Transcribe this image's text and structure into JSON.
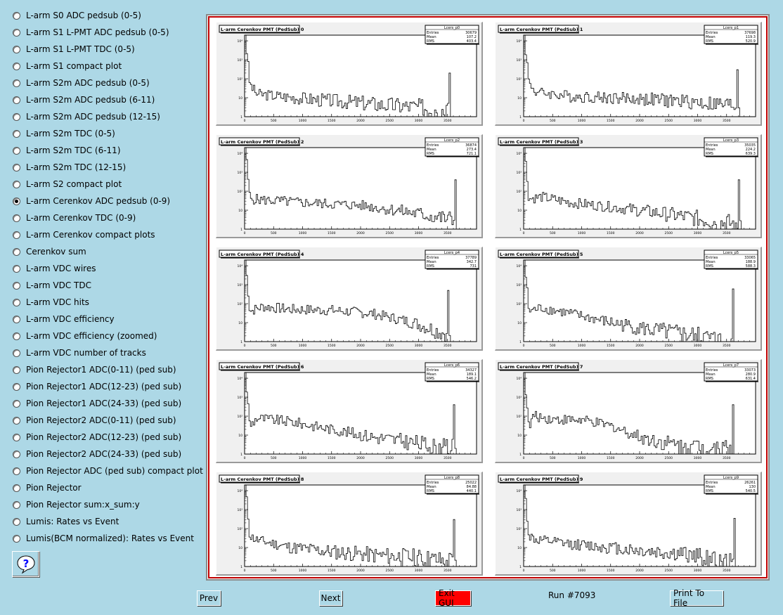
{
  "sidebar": {
    "items": [
      {
        "label": "L-arm S0 ADC pedsub (0-5)",
        "checked": false
      },
      {
        "label": "L-arm S1 L-PMT ADC pedsub (0-5)",
        "checked": false
      },
      {
        "label": "L-arm S1 L-PMT TDC (0-5)",
        "checked": false
      },
      {
        "label": "L-arm S1 compact plot",
        "checked": false
      },
      {
        "label": "L-arm S2m ADC pedsub (0-5)",
        "checked": false
      },
      {
        "label": "L-arm S2m ADC pedsub (6-11)",
        "checked": false
      },
      {
        "label": "L-arm S2m ADC pedsub (12-15)",
        "checked": false
      },
      {
        "label": "L-arm S2m TDC (0-5)",
        "checked": false
      },
      {
        "label": "L-arm S2m TDC (6-11)",
        "checked": false
      },
      {
        "label": "L-arm S2m TDC (12-15)",
        "checked": false
      },
      {
        "label": "L-arm S2 compact plot",
        "checked": false
      },
      {
        "label": "L-arm Cerenkov ADC pedsub (0-9)",
        "checked": true
      },
      {
        "label": "L-arm Cerenkov TDC (0-9)",
        "checked": false
      },
      {
        "label": "L-arm Cerenkov compact plots",
        "checked": false
      },
      {
        "label": "Cerenkov sum",
        "checked": false
      },
      {
        "label": "L-arm VDC wires",
        "checked": false
      },
      {
        "label": "L-arm VDC TDC",
        "checked": false
      },
      {
        "label": "L-arm VDC hits",
        "checked": false
      },
      {
        "label": "L-arm VDC efficiency",
        "checked": false
      },
      {
        "label": "L-arm VDC efficiency (zoomed)",
        "checked": false
      },
      {
        "label": "L-arm VDC number of tracks",
        "checked": false
      },
      {
        "label": "Pion Rejector1 ADC(0-11) (ped sub)",
        "checked": false
      },
      {
        "label": "Pion Rejector1 ADC(12-23) (ped sub)",
        "checked": false
      },
      {
        "label": "Pion Rejector1 ADC(24-33) (ped sub)",
        "checked": false
      },
      {
        "label": "Pion Rejector2 ADC(0-11) (ped sub)",
        "checked": false
      },
      {
        "label": "Pion Rejector2 ADC(12-23) (ped sub)",
        "checked": false
      },
      {
        "label": "Pion Rejector2 ADC(24-33) (ped sub)",
        "checked": false
      },
      {
        "label": "Pion Rejector ADC (ped sub) compact plot",
        "checked": false
      },
      {
        "label": "Pion Rejector",
        "checked": false
      },
      {
        "label": "Pion Rejector sum:x_sum:y",
        "checked": false
      },
      {
        "label": "Lumis: Rates vs Event",
        "checked": false
      },
      {
        "label": "Lumis(BCM normalized): Rates vs Event",
        "checked": false
      }
    ],
    "help_icon": "question-mark-icon"
  },
  "footer": {
    "prev_label": "Prev",
    "next_label": "Next",
    "exit_label": "Exit GUI",
    "run_label": "Run #7093",
    "print_label": "Print To File",
    "exit_color": "#ff0000"
  },
  "chart_data": [
    {
      "type": "histogram",
      "title": "L-arm Cerenkov PMT (PedSub) 0",
      "stats": {
        "name": "Lcers_p0",
        "Entries": "30679",
        "Mean": "107.2",
        "RMS": "403.4"
      },
      "log_y": true,
      "x_ticks": [
        "0",
        "500",
        "1000",
        "1500",
        "2000",
        "2500",
        "3000",
        "3500"
      ],
      "y_ticks": [
        "1",
        "10",
        "10²",
        "10³",
        "10⁴"
      ],
      "xlim": [
        0,
        4000
      ],
      "ylim": [
        1,
        20000
      ],
      "profile": [
        [
          0,
          20000
        ],
        [
          80,
          50
        ],
        [
          200,
          16
        ],
        [
          600,
          12
        ],
        [
          1200,
          8
        ],
        [
          1800,
          6
        ],
        [
          2500,
          4
        ],
        [
          3200,
          3
        ],
        [
          3500,
          2
        ]
      ],
      "spike": {
        "x": 3520,
        "y": 200
      }
    },
    {
      "type": "histogram",
      "title": "L-arm Cerenkov PMT (PedSub) 1",
      "stats": {
        "name": "Lcers_p1",
        "Entries": "37698",
        "Mean": "119.3",
        "RMS": "520.9"
      },
      "log_y": true,
      "x_ticks": [
        "0",
        "500",
        "1000",
        "1500",
        "2000",
        "2500",
        "3000",
        "3500"
      ],
      "y_ticks": [
        "1",
        "10",
        "10²",
        "10³",
        "10⁴"
      ],
      "xlim": [
        0,
        4000
      ],
      "ylim": [
        1,
        20000
      ],
      "profile": [
        [
          0,
          20000
        ],
        [
          80,
          60
        ],
        [
          200,
          20
        ],
        [
          800,
          12
        ],
        [
          1500,
          10
        ],
        [
          2200,
          8
        ],
        [
          2900,
          6
        ],
        [
          3500,
          4
        ]
      ],
      "spike": {
        "x": 3680,
        "y": 300
      }
    },
    {
      "type": "histogram",
      "title": "L-arm Cerenkov PMT (PedSub) 2",
      "stats": {
        "name": "Lcers_p2",
        "Entries": "36874",
        "Mean": "273.4",
        "RMS": "721.1"
      },
      "log_y": true,
      "x_ticks": [
        "0",
        "500",
        "1000",
        "1500",
        "2000",
        "2500",
        "3000",
        "3500"
      ],
      "y_ticks": [
        "1",
        "10",
        "10²",
        "10³",
        "10⁴"
      ],
      "xlim": [
        0,
        4000
      ],
      "ylim": [
        1,
        20000
      ],
      "profile": [
        [
          0,
          20000
        ],
        [
          80,
          40
        ],
        [
          300,
          35
        ],
        [
          1000,
          25
        ],
        [
          2000,
          18
        ],
        [
          2600,
          10
        ],
        [
          3200,
          5
        ],
        [
          3600,
          3
        ]
      ],
      "spike": {
        "x": 3620,
        "y": 400
      }
    },
    {
      "type": "histogram",
      "title": "L-arm Cerenkov PMT (PedSub) 3",
      "stats": {
        "name": "Lcers_p3",
        "Entries": "35035",
        "Mean": "224.2",
        "RMS": "639.3"
      },
      "log_y": true,
      "x_ticks": [
        "0",
        "500",
        "1000",
        "1500",
        "2000",
        "2500",
        "3000",
        "3500"
      ],
      "y_ticks": [
        "1",
        "10",
        "10²",
        "10³",
        "10⁴"
      ],
      "xlim": [
        0,
        4000
      ],
      "ylim": [
        1,
        20000
      ],
      "profile": [
        [
          0,
          20000
        ],
        [
          80,
          40
        ],
        [
          300,
          50
        ],
        [
          800,
          25
        ],
        [
          1500,
          15
        ],
        [
          2200,
          8
        ],
        [
          2900,
          4
        ],
        [
          3500,
          2
        ]
      ],
      "spike": {
        "x": 3700,
        "y": 400
      }
    },
    {
      "type": "histogram",
      "title": "L-arm Cerenkov PMT (PedSub) 4",
      "stats": {
        "name": "Lcers_p4",
        "Entries": "37789",
        "Mean": "342.7",
        "RMS": "731"
      },
      "log_y": true,
      "x_ticks": [
        "0",
        "500",
        "1000",
        "1500",
        "2000",
        "2500",
        "3000",
        "3500"
      ],
      "y_ticks": [
        "1",
        "10",
        "10²",
        "10³",
        "10⁴"
      ],
      "xlim": [
        0,
        4000
      ],
      "ylim": [
        1,
        20000
      ],
      "profile": [
        [
          0,
          20000
        ],
        [
          80,
          40
        ],
        [
          300,
          70
        ],
        [
          800,
          50
        ],
        [
          1500,
          45
        ],
        [
          2200,
          30
        ],
        [
          2900,
          10
        ],
        [
          3400,
          3
        ]
      ],
      "spike": {
        "x": 3500,
        "y": 500
      }
    },
    {
      "type": "histogram",
      "title": "L-arm Cerenkov PMT (PedSub) 5",
      "stats": {
        "name": "Lcers_p5",
        "Entries": "33065",
        "Mean": "188.9",
        "RMS": "588.3"
      },
      "log_y": true,
      "x_ticks": [
        "0",
        "500",
        "1000",
        "1500",
        "2000",
        "2500",
        "3000",
        "3500"
      ],
      "y_ticks": [
        "1",
        "10",
        "10²",
        "10³",
        "10⁴"
      ],
      "xlim": [
        0,
        4000
      ],
      "ylim": [
        1,
        20000
      ],
      "profile": [
        [
          0,
          20000
        ],
        [
          80,
          40
        ],
        [
          300,
          60
        ],
        [
          800,
          30
        ],
        [
          1500,
          10
        ],
        [
          2200,
          4
        ],
        [
          2900,
          2
        ],
        [
          3400,
          1
        ]
      ],
      "spike": {
        "x": 3600,
        "y": 600
      }
    },
    {
      "type": "histogram",
      "title": "L-arm Cerenkov PMT (PedSub) 6",
      "stats": {
        "name": "Lcers_p6",
        "Entries": "34327",
        "Mean": "189.1",
        "RMS": "546.2"
      },
      "log_y": true,
      "x_ticks": [
        "0",
        "500",
        "1000",
        "1500",
        "2000",
        "2500",
        "3000",
        "3500"
      ],
      "y_ticks": [
        "1",
        "10",
        "10²",
        "10³",
        "10⁴"
      ],
      "xlim": [
        0,
        4000
      ],
      "ylim": [
        1,
        20000
      ],
      "profile": [
        [
          0,
          20000
        ],
        [
          80,
          30
        ],
        [
          200,
          80
        ],
        [
          800,
          50
        ],
        [
          1500,
          20
        ],
        [
          2200,
          8
        ],
        [
          2900,
          4
        ],
        [
          3400,
          2
        ]
      ],
      "spike": {
        "x": 3600,
        "y": 400
      }
    },
    {
      "type": "histogram",
      "title": "L-arm Cerenkov PMT (PedSub) 7",
      "stats": {
        "name": "Lcers_p7",
        "Entries": "33073",
        "Mean": "280.9",
        "RMS": "631.4"
      },
      "log_y": true,
      "x_ticks": [
        "0",
        "500",
        "1000",
        "1500",
        "2000",
        "2500",
        "3000",
        "3500"
      ],
      "y_ticks": [
        "1",
        "10",
        "10²",
        "10³",
        "10⁴"
      ],
      "xlim": [
        0,
        4000
      ],
      "ylim": [
        1,
        20000
      ],
      "profile": [
        [
          0,
          20000
        ],
        [
          80,
          20
        ],
        [
          150,
          100
        ],
        [
          500,
          70
        ],
        [
          1000,
          60
        ],
        [
          1500,
          30
        ],
        [
          2000,
          8
        ],
        [
          2600,
          3
        ],
        [
          3200,
          2
        ]
      ],
      "spike": {
        "x": 3600,
        "y": 400
      }
    },
    {
      "type": "histogram",
      "title": "L-arm Cerenkov PMT (PedSub) 8",
      "stats": {
        "name": "Lcers_p8",
        "Entries": "25022",
        "Mean": "84.88",
        "RMS": "440.1"
      },
      "log_y": true,
      "x_ticks": [
        "0",
        "500",
        "1000",
        "1500",
        "2000",
        "2500",
        "3000",
        "3500"
      ],
      "y_ticks": [
        "1",
        "10",
        "10²",
        "10³",
        "10⁴"
      ],
      "xlim": [
        0,
        4000
      ],
      "ylim": [
        1,
        20000
      ],
      "profile": [
        [
          0,
          20000
        ],
        [
          80,
          40
        ],
        [
          200,
          25
        ],
        [
          800,
          10
        ],
        [
          1500,
          6
        ],
        [
          2200,
          4
        ],
        [
          2900,
          3
        ],
        [
          3400,
          2
        ]
      ],
      "spike": {
        "x": 3600,
        "y": 300
      }
    },
    {
      "type": "histogram",
      "title": "L-arm Cerenkov PMT (PedSub) 9",
      "stats": {
        "name": "Lcers_p9",
        "Entries": "26261",
        "Mean": "130",
        "RMS": "540.5"
      },
      "log_y": true,
      "x_ticks": [
        "0",
        "500",
        "1000",
        "1500",
        "2000",
        "2500",
        "3000",
        "3500"
      ],
      "y_ticks": [
        "1",
        "10",
        "10²",
        "10³",
        "10⁴"
      ],
      "xlim": [
        0,
        4000
      ],
      "ylim": [
        1,
        20000
      ],
      "profile": [
        [
          0,
          20000
        ],
        [
          80,
          40
        ],
        [
          200,
          25
        ],
        [
          800,
          15
        ],
        [
          1500,
          10
        ],
        [
          2200,
          6
        ],
        [
          2900,
          4
        ],
        [
          3400,
          2
        ]
      ],
      "spike": {
        "x": 3620,
        "y": 350
      }
    }
  ]
}
